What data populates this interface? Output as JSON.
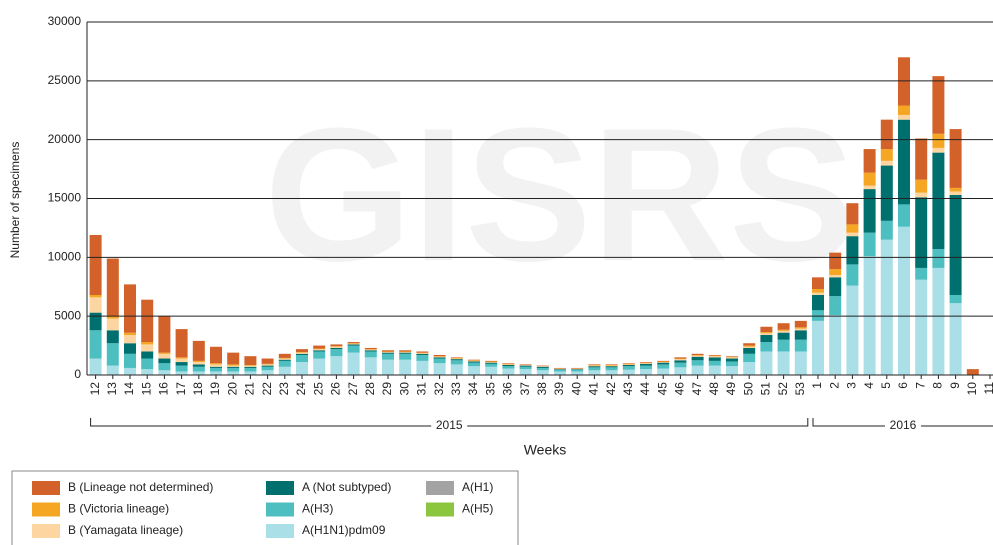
{
  "chart_data": {
    "type": "bar",
    "stacked": true,
    "watermark": "GISRS",
    "y_label": "Number of specimens",
    "x_label": "Weeks",
    "x_groups": [
      {
        "label": "2015"
      },
      {
        "label": "2016"
      }
    ],
    "categories": [
      "12",
      "13",
      "14",
      "15",
      "16",
      "17",
      "18",
      "19",
      "20",
      "21",
      "22",
      "23",
      "24",
      "25",
      "26",
      "27",
      "28",
      "29",
      "30",
      "31",
      "32",
      "33",
      "34",
      "35",
      "36",
      "37",
      "38",
      "39",
      "40",
      "41",
      "42",
      "43",
      "44",
      "45",
      "46",
      "47",
      "48",
      "49",
      "50",
      "51",
      "52",
      "53",
      "1",
      "2",
      "3",
      "4",
      "5",
      "6",
      "7",
      "8",
      "9",
      "10",
      "11"
    ],
    "ylim": [
      0,
      30000
    ],
    "yticks": [
      0,
      5000,
      10000,
      15000,
      20000,
      25000,
      30000
    ],
    "grid": true,
    "series": [
      {
        "name": "B (Lineage not determined)",
        "color": "#d2622a",
        "values": [
          5100,
          4900,
          4100,
          3600,
          3100,
          2400,
          1700,
          1400,
          1000,
          750,
          450,
          350,
          250,
          250,
          150,
          100,
          100,
          100,
          100,
          100,
          100,
          50,
          50,
          50,
          50,
          50,
          50,
          50,
          50,
          50,
          50,
          50,
          50,
          50,
          100,
          100,
          50,
          50,
          200,
          450,
          550,
          550,
          1000,
          1400,
          1800,
          2000,
          2500,
          4100,
          3500,
          4900,
          5000,
          500,
          0
        ]
      },
      {
        "name": "B (Victoria lineage)",
        "color": "#f5a623",
        "values": [
          200,
          200,
          200,
          200,
          100,
          100,
          100,
          100,
          100,
          50,
          50,
          50,
          50,
          50,
          50,
          50,
          50,
          50,
          50,
          50,
          50,
          50,
          50,
          50,
          50,
          0,
          0,
          0,
          0,
          50,
          50,
          50,
          50,
          50,
          50,
          50,
          50,
          50,
          100,
          100,
          100,
          100,
          300,
          500,
          700,
          1100,
          1000,
          800,
          1100,
          1200,
          300,
          0,
          0
        ]
      },
      {
        "name": "B (Yamagata lineage)",
        "color": "#fdd5a0",
        "values": [
          1300,
          1000,
          700,
          600,
          400,
          300,
          200,
          200,
          100,
          100,
          100,
          100,
          100,
          100,
          100,
          50,
          50,
          50,
          50,
          50,
          50,
          50,
          50,
          50,
          50,
          50,
          50,
          50,
          50,
          50,
          50,
          50,
          50,
          50,
          100,
          100,
          100,
          100,
          100,
          150,
          150,
          150,
          200,
          200,
          300,
          300,
          400,
          400,
          400,
          400,
          300,
          0,
          0
        ]
      },
      {
        "name": "A (Not subtyped)",
        "color": "#00706e",
        "values": [
          1500,
          1100,
          900,
          600,
          400,
          300,
          200,
          100,
          100,
          100,
          100,
          100,
          100,
          100,
          100,
          100,
          100,
          100,
          100,
          100,
          100,
          100,
          100,
          100,
          100,
          100,
          100,
          50,
          50,
          100,
          100,
          100,
          150,
          150,
          200,
          300,
          300,
          250,
          500,
          600,
          600,
          800,
          1300,
          1600,
          2400,
          3700,
          4700,
          7200,
          6000,
          8200,
          8500,
          0,
          0
        ]
      },
      {
        "name": "A(H3)",
        "color": "#4dbfc0",
        "values": [
          2400,
          1900,
          1200,
          900,
          600,
          500,
          400,
          300,
          300,
          300,
          300,
          500,
          600,
          600,
          600,
          600,
          500,
          500,
          500,
          500,
          400,
          350,
          300,
          250,
          200,
          200,
          200,
          150,
          150,
          250,
          250,
          300,
          300,
          350,
          400,
          450,
          400,
          400,
          700,
          800,
          1000,
          1000,
          900,
          1600,
          1800,
          2000,
          1600,
          1900,
          1000,
          1600,
          700,
          0,
          0
        ]
      },
      {
        "name": "A(H1N1)pdm09",
        "color": "#aadfe7",
        "values": [
          1400,
          800,
          600,
          500,
          400,
          300,
          300,
          300,
          300,
          300,
          400,
          700,
          1100,
          1400,
          1600,
          1900,
          1500,
          1300,
          1300,
          1200,
          1000,
          900,
          750,
          700,
          550,
          500,
          400,
          300,
          300,
          400,
          400,
          450,
          500,
          550,
          650,
          800,
          800,
          750,
          1100,
          2000,
          2000,
          2000,
          4600,
          5100,
          7600,
          10100,
          11500,
          12600,
          8100,
          9100,
          6100,
          0,
          0
        ]
      },
      {
        "name": "A(H1)",
        "color": "#a3a3a3",
        "values": [
          0,
          0,
          0,
          0,
          0,
          0,
          0,
          0,
          0,
          0,
          0,
          0,
          0,
          0,
          0,
          0,
          0,
          0,
          0,
          0,
          0,
          0,
          0,
          0,
          0,
          0,
          0,
          0,
          0,
          0,
          0,
          0,
          0,
          0,
          0,
          0,
          0,
          0,
          0,
          0,
          0,
          0,
          0,
          0,
          0,
          0,
          0,
          0,
          0,
          0,
          0,
          0,
          0
        ]
      },
      {
        "name": "A(H5)",
        "color": "#8cc63f",
        "values": [
          0,
          0,
          0,
          0,
          0,
          0,
          0,
          0,
          0,
          0,
          0,
          0,
          0,
          0,
          0,
          0,
          0,
          0,
          0,
          0,
          0,
          0,
          0,
          0,
          0,
          0,
          0,
          0,
          0,
          0,
          0,
          0,
          0,
          0,
          0,
          0,
          0,
          0,
          0,
          0,
          0,
          0,
          0,
          0,
          0,
          0,
          0,
          0,
          0,
          0,
          0,
          0,
          0
        ]
      }
    ]
  }
}
